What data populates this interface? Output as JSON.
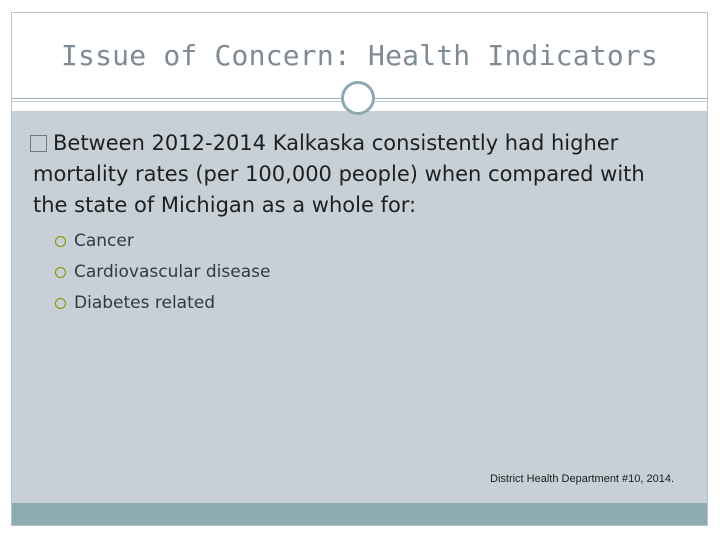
{
  "slide": {
    "title": "Issue of Concern: Health Indicators",
    "main_bullet": {
      "text": "Between 2012-2014 Kalkaska consistently had higher mortality rates (per 100,000 people) when compared with the state of Michigan as a whole for:"
    },
    "sub_bullets": [
      {
        "label": "Cancer"
      },
      {
        "label": "Cardiovascular disease"
      },
      {
        "label": "Diabetes related"
      }
    ],
    "citation": "District Health Department #10, 2014."
  },
  "colors": {
    "body_background": "#c6d0d6",
    "accent": "#8eabb1",
    "title_text": "#7e8c95",
    "sub_bullet_ring": "#8a8f00"
  },
  "icons": {
    "main_bullet": "square-bullet-icon",
    "sub_bullet": "circle-bullet-icon",
    "ornament": "circle-ornament-icon"
  }
}
